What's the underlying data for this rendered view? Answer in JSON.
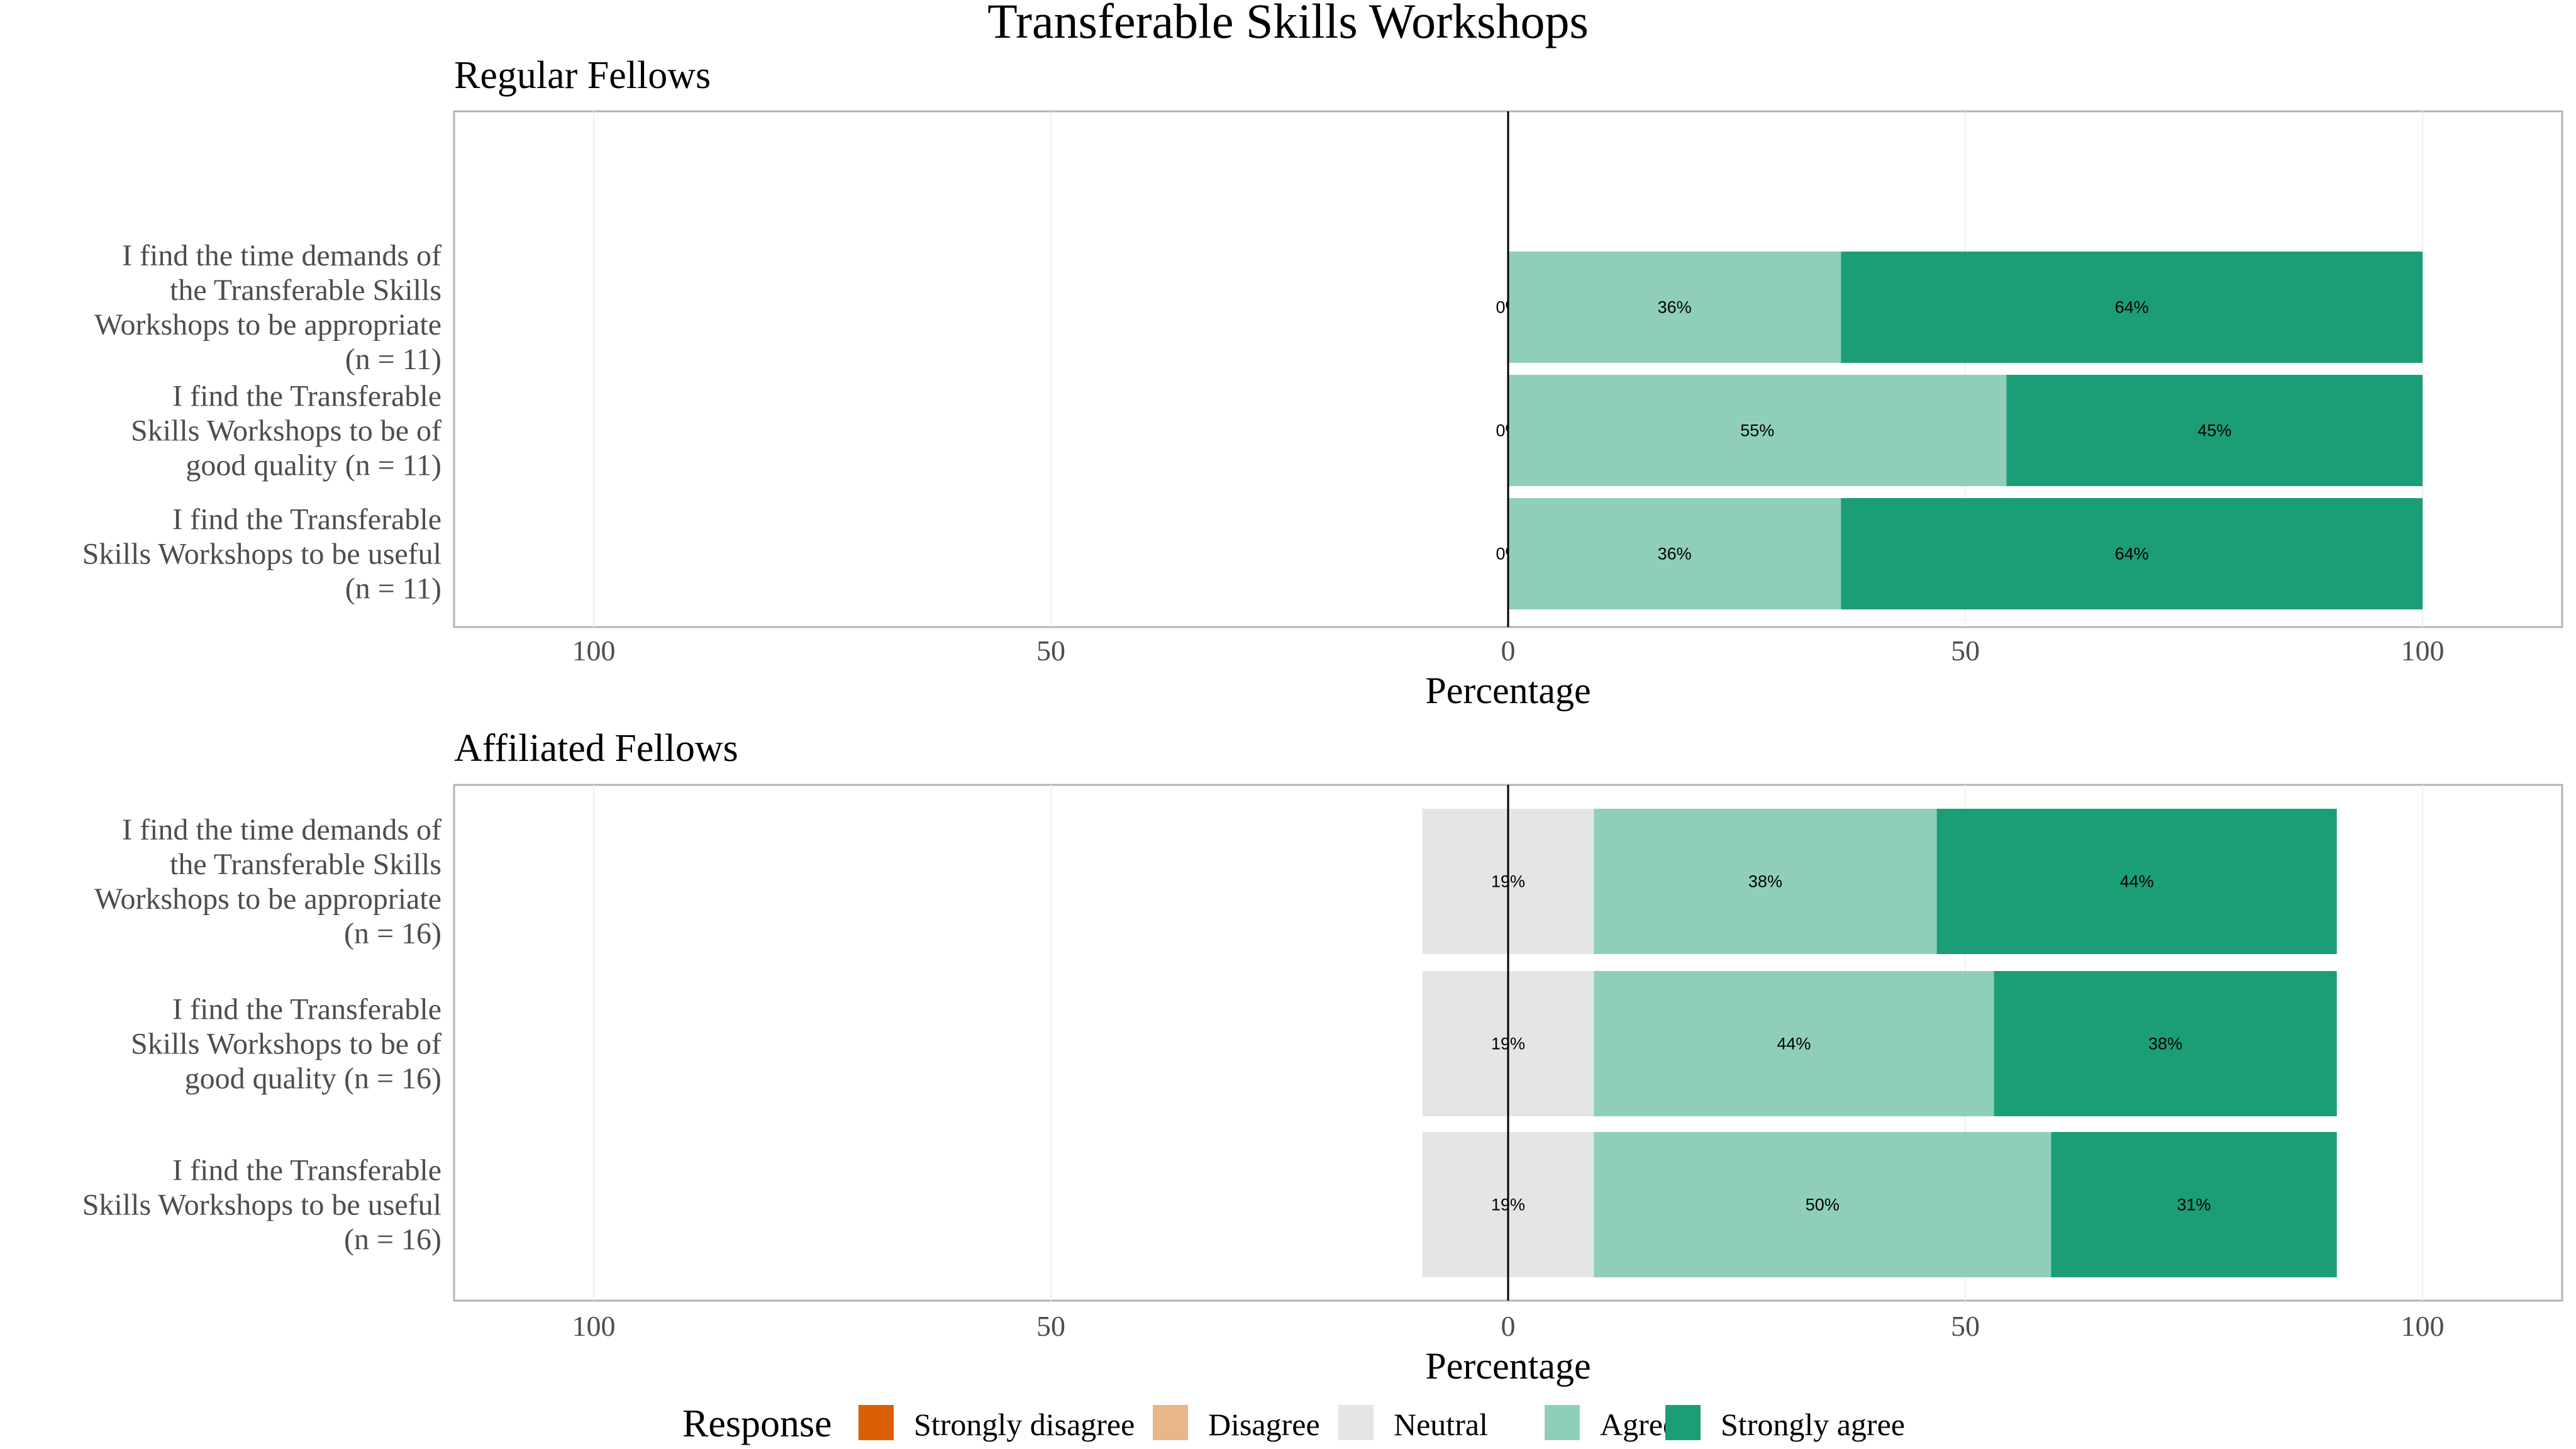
{
  "chart_data": {
    "type": "bar",
    "title": "Transferable Skills Workshops",
    "xlabel": "Percentage",
    "xlim": [
      -100,
      100
    ],
    "tick_values": [
      -100,
      -50,
      0,
      50,
      100
    ],
    "tick_labels": [
      "100",
      "50",
      "0",
      "50",
      "100"
    ],
    "colors": {
      "Strongly disagree": "#d95f02",
      "Disagree": "#e9b68a",
      "Neutral": "#e5e5e5",
      "Agree": "#8fcfba",
      "Strongly agree": "#1b9e77"
    },
    "legend": {
      "title": "Response",
      "position": "bottom",
      "items": [
        "Strongly disagree",
        "Disagree",
        "Neutral",
        "Agree",
        "Strongly agree"
      ]
    },
    "panels": [
      {
        "title": "Regular Fellows",
        "categories": [
          [
            "I find the time demands of",
            "the Transferable Skills",
            "Workshops to be appropriate",
            "(n = 11)"
          ],
          [
            "I find the Transferable",
            "Skills Workshops to be of",
            "good quality (n = 11)"
          ],
          [
            "I find the Transferable",
            "Skills Workshops to be useful",
            "(n = 11)"
          ]
        ],
        "series": [
          {
            "name": "Neutral",
            "values": [
              0,
              0,
              0
            ],
            "labels": [
              "0%",
              "0%",
              "0%"
            ]
          },
          {
            "name": "Agree",
            "values": [
              36.4,
              54.5,
              36.4
            ],
            "labels": [
              "36%",
              "55%",
              "36%"
            ]
          },
          {
            "name": "Strongly agree",
            "values": [
              63.6,
              45.5,
              63.6
            ],
            "labels": [
              "64%",
              "45%",
              "64%"
            ]
          }
        ]
      },
      {
        "title": "Affiliated Fellows",
        "categories": [
          [
            "I find the time demands of",
            "the Transferable Skills",
            "Workshops to be appropriate",
            "(n = 16)"
          ],
          [
            "I find the Transferable",
            "Skills Workshops to be of",
            "good quality (n = 16)"
          ],
          [
            "I find the Transferable",
            "Skills Workshops to be useful",
            "(n = 16)"
          ]
        ],
        "series": [
          {
            "name": "Neutral",
            "values": [
              18.75,
              18.75,
              18.75
            ],
            "labels": [
              "19%",
              "19%",
              "19%"
            ]
          },
          {
            "name": "Agree",
            "values": [
              37.5,
              43.75,
              50.0
            ],
            "labels": [
              "38%",
              "44%",
              "50%"
            ]
          },
          {
            "name": "Strongly agree",
            "values": [
              43.75,
              37.5,
              31.25
            ],
            "labels": [
              "44%",
              "38%",
              "31%"
            ]
          }
        ]
      }
    ]
  }
}
